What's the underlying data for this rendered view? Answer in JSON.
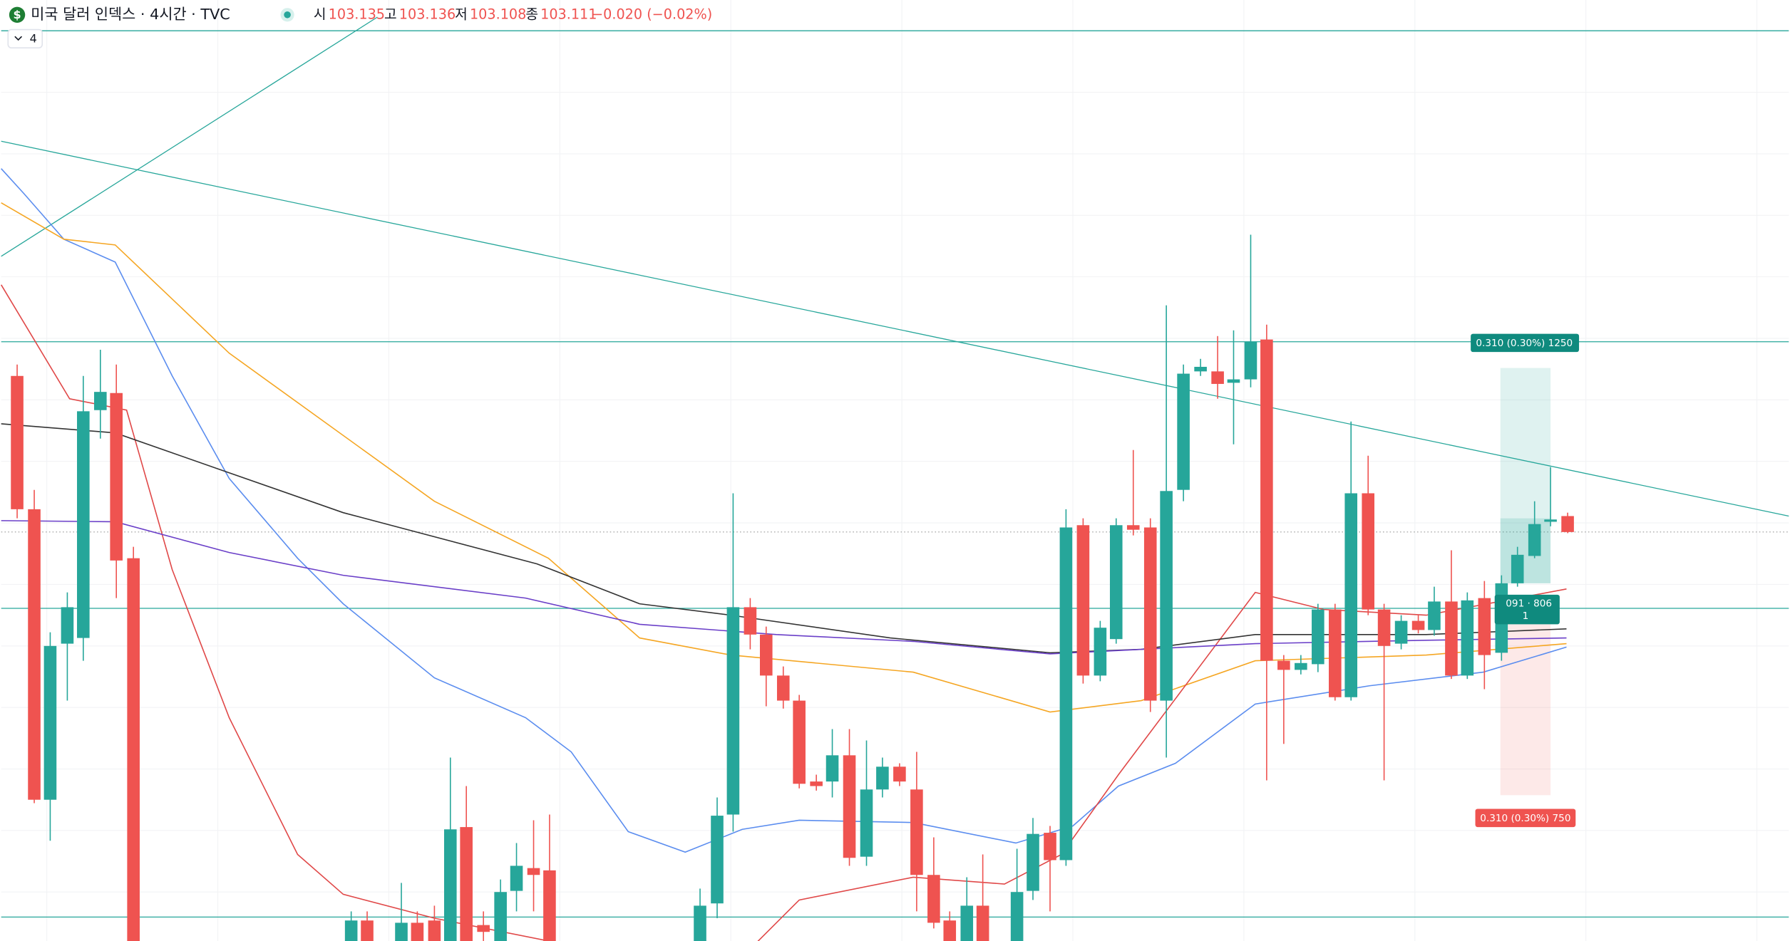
{
  "header": {
    "icon": "$",
    "title": "미국 달러 인덱스 · 4시간 · TVC",
    "ohlc": [
      {
        "label": "시",
        "value": "103.135"
      },
      {
        "label": "고",
        "value": "103.136"
      },
      {
        "label": "저",
        "value": "103.108"
      },
      {
        "label": "종",
        "value": "103.111"
      }
    ],
    "change": "−0.020 (−0.02%)",
    "interval_toggle": "4"
  },
  "position_tool": {
    "target": "0.310 (0.30%) 1250",
    "entry": "091 · 806",
    "entry_sub": "1",
    "stop": "0.310 (0.30%) 750"
  }
}
